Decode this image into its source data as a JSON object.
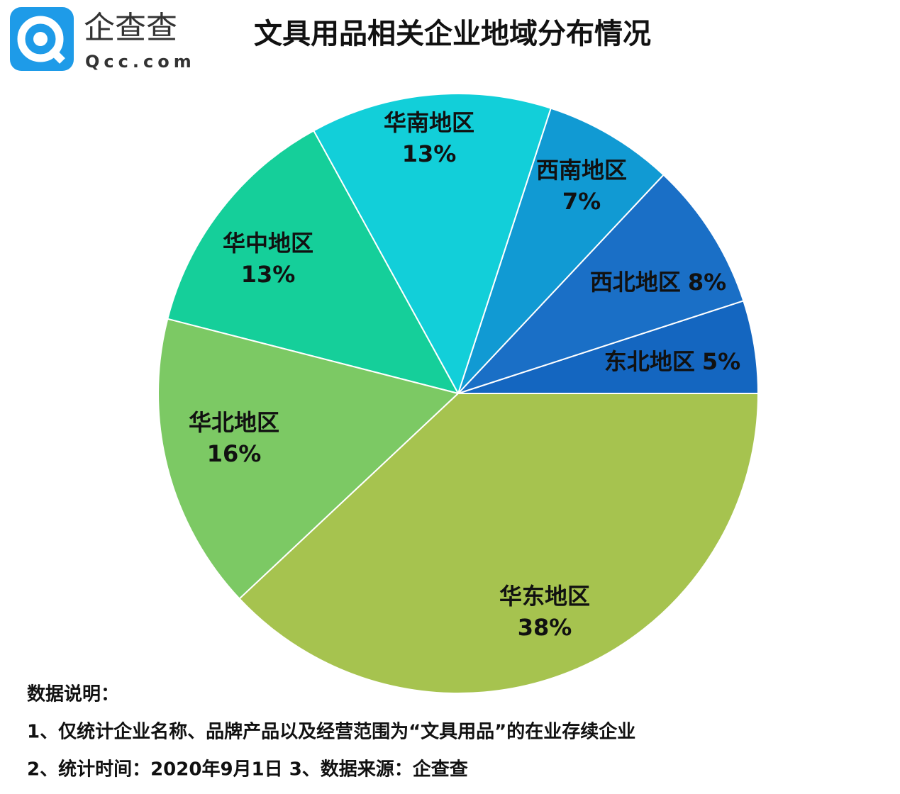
{
  "logo": {
    "name": "企查查",
    "domain": "Qcc.com"
  },
  "chart_data": {
    "type": "pie",
    "title": "文具用品相关企业地域分布情况",
    "categories": [
      "东北地区",
      "西北地区",
      "西南地区",
      "华南地区",
      "华中地区",
      "华北地区",
      "华东地区"
    ],
    "values": [
      5,
      8,
      7,
      13,
      13,
      16,
      38
    ],
    "value_labels": [
      "5%",
      "8%",
      "7%",
      "13%",
      "13%",
      "16%",
      "38%"
    ],
    "colors": [
      "#1466c0",
      "#1a6fc6",
      "#119ad3",
      "#12cfd9",
      "#15cf9a",
      "#7cc964",
      "#a6c34f"
    ]
  },
  "notes": {
    "heading": "数据说明：",
    "lines": [
      "1、仅统计企业名称、品牌产品以及经营范围为“文具用品”的在业存续企业",
      "2、统计时间：2020年9月1日   3、数据来源：企查查"
    ]
  }
}
